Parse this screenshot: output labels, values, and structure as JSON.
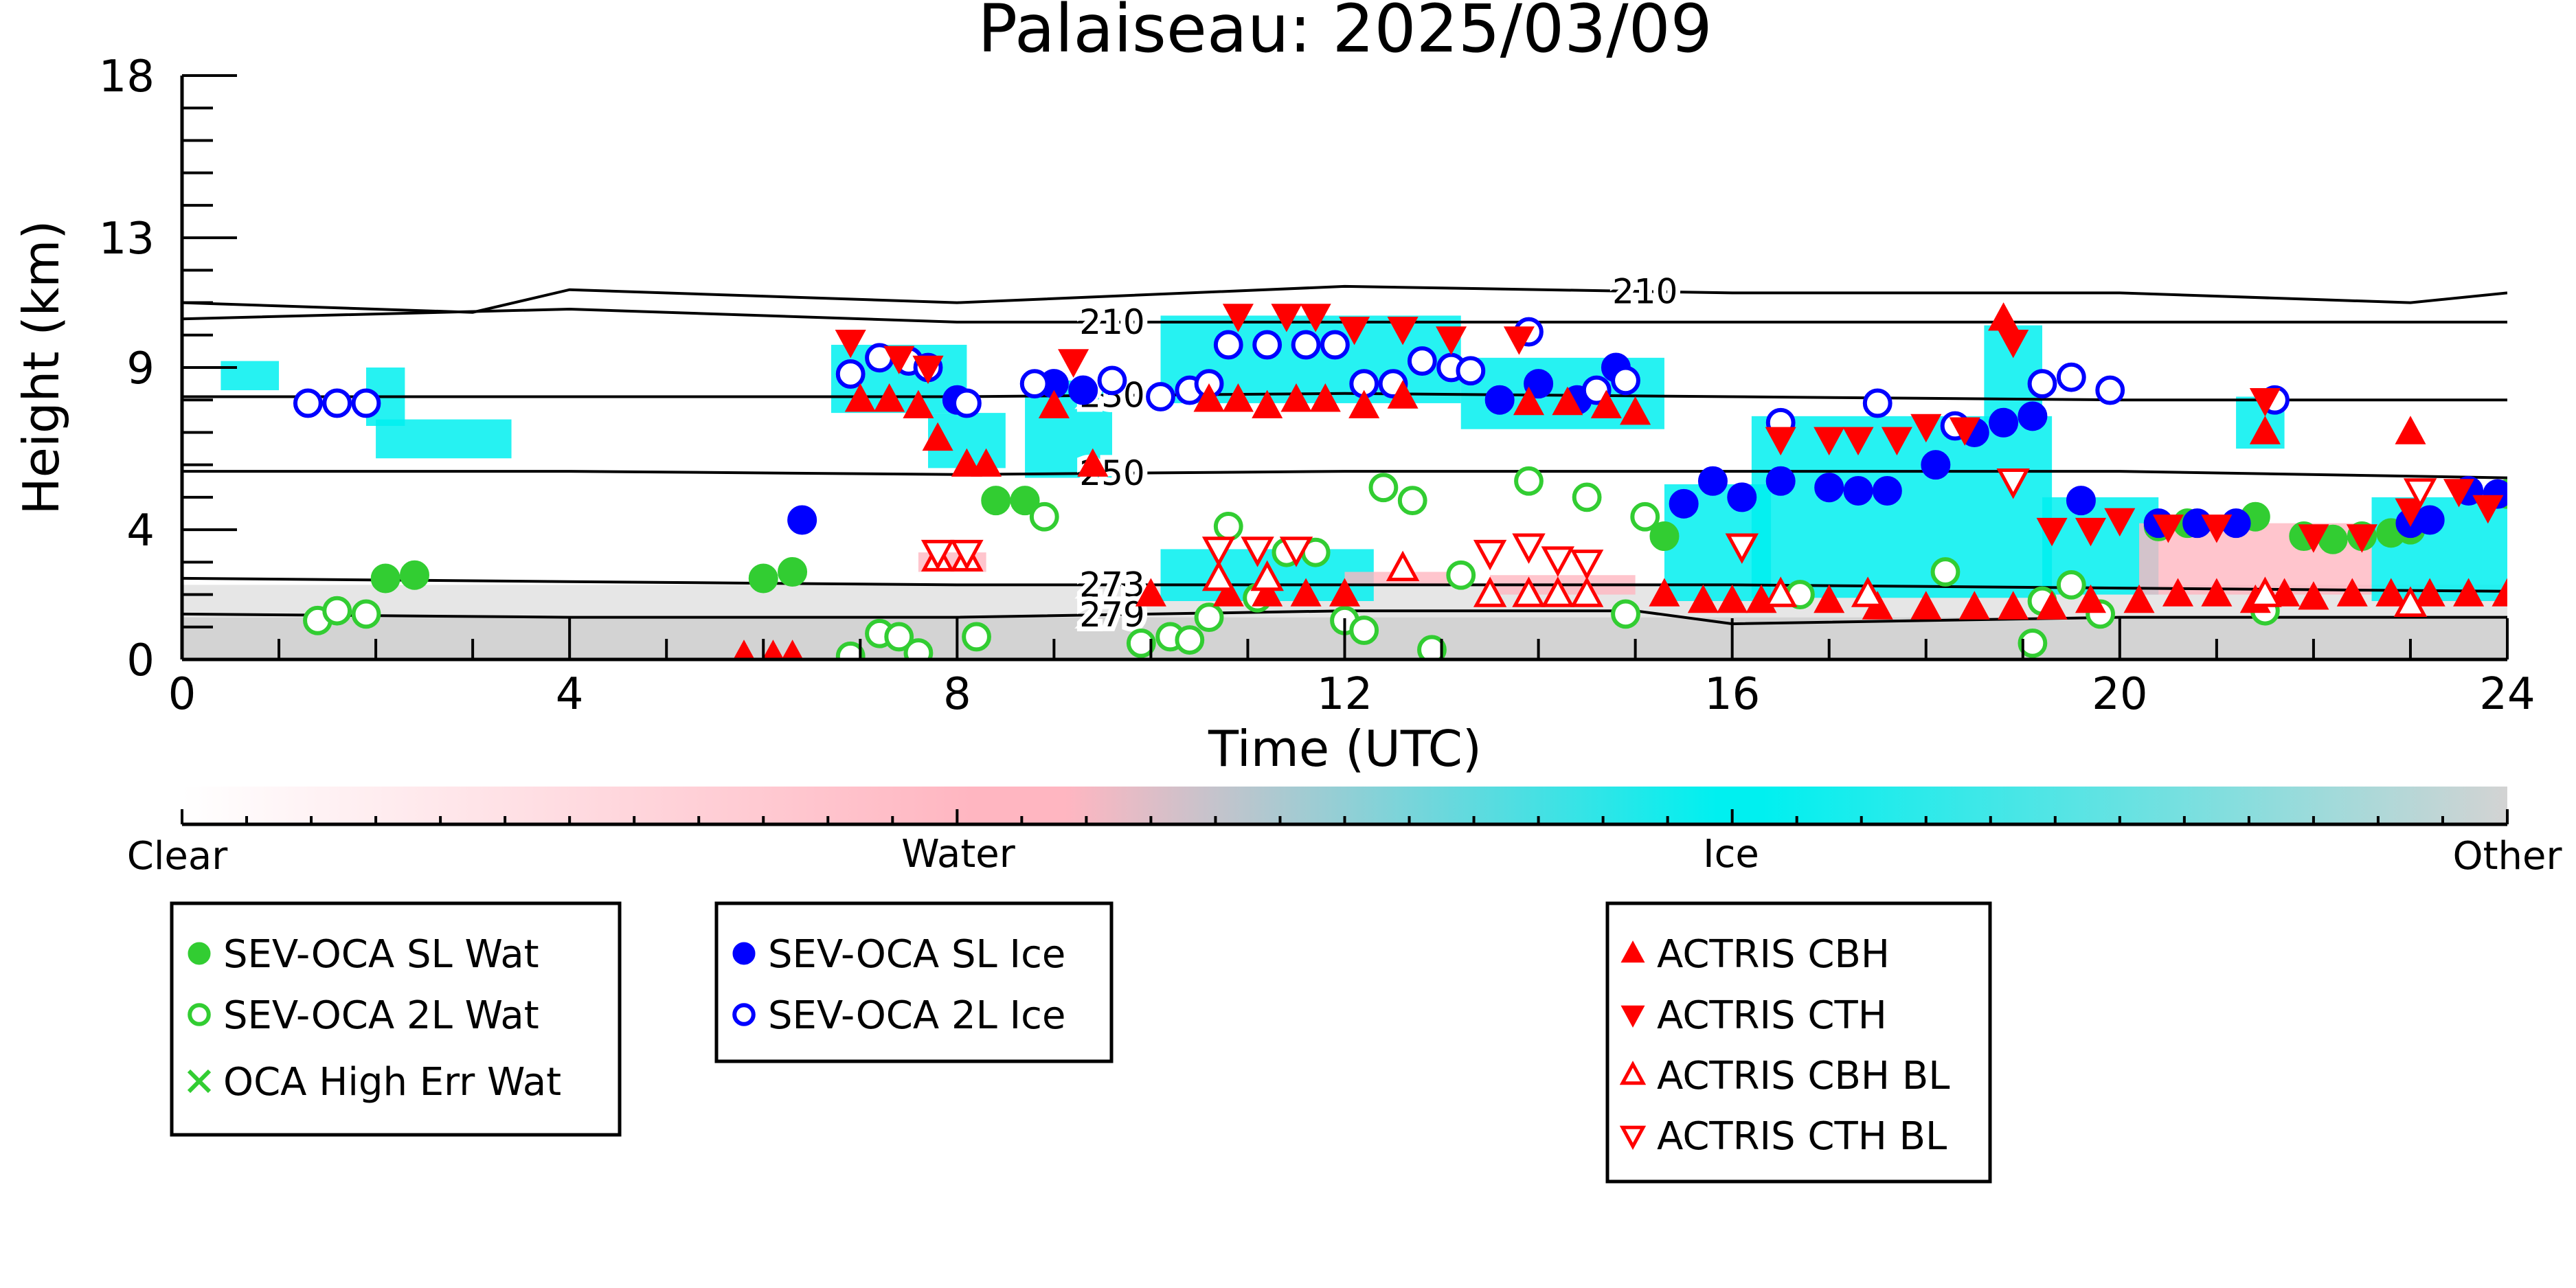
{
  "chart_data": {
    "type": "scatter",
    "title": "Palaiseau: 2025/03/09",
    "xlabel": "Time (UTC)",
    "ylabel": "Height (km)",
    "xlim": [
      0,
      24
    ],
    "ylim": [
      0,
      18
    ],
    "xticks": [
      0,
      4,
      8,
      12,
      16,
      20,
      24
    ],
    "yticks": [
      0,
      4,
      9,
      13,
      18
    ],
    "grid": false,
    "colorbar": {
      "labels": [
        "Clear",
        "Water",
        "Ice",
        "Other"
      ],
      "colors": [
        "#ffffff",
        "#ffb6c1",
        "#00f0f0",
        "#d3d3d3"
      ]
    },
    "temperature_contours": [
      {
        "label": "210",
        "points": [
          [
            0,
            11.0
          ],
          [
            3,
            10.7
          ],
          [
            4,
            11.4
          ],
          [
            8,
            11.0
          ],
          [
            12,
            11.5
          ],
          [
            16,
            11.3
          ],
          [
            20,
            11.3
          ],
          [
            23,
            11.0
          ],
          [
            24,
            11.3
          ]
        ]
      },
      {
        "label": "210",
        "points": [
          [
            0,
            10.5
          ],
          [
            4,
            10.8
          ],
          [
            8,
            10.4
          ],
          [
            12,
            10.4
          ],
          [
            16,
            10.4
          ],
          [
            20,
            10.4
          ],
          [
            24,
            10.4
          ]
        ]
      },
      {
        "label": "230",
        "points": [
          [
            0,
            8.1
          ],
          [
            4,
            8.1
          ],
          [
            8,
            8.1
          ],
          [
            12,
            8.2
          ],
          [
            16,
            8.1
          ],
          [
            20,
            8.0
          ],
          [
            24,
            8.0
          ]
        ]
      },
      {
        "label": "250",
        "points": [
          [
            0,
            5.8
          ],
          [
            4,
            5.8
          ],
          [
            8,
            5.7
          ],
          [
            12,
            5.8
          ],
          [
            16,
            5.8
          ],
          [
            20,
            5.8
          ],
          [
            24,
            5.6
          ]
        ]
      },
      {
        "label": "273",
        "points": [
          [
            0,
            2.5
          ],
          [
            4,
            2.4
          ],
          [
            8,
            2.3
          ],
          [
            12,
            2.3
          ],
          [
            16,
            2.3
          ],
          [
            20,
            2.2
          ],
          [
            24,
            2.1
          ]
        ]
      },
      {
        "label": "279",
        "points": [
          [
            0,
            1.4
          ],
          [
            4,
            1.3
          ],
          [
            8,
            1.3
          ],
          [
            12,
            1.5
          ],
          [
            15,
            1.5
          ],
          [
            16,
            1.1
          ],
          [
            20,
            1.3
          ],
          [
            24,
            1.3
          ]
        ]
      }
    ],
    "series": [
      {
        "name": "SEV-OCA SL Wat",
        "color": "#32cd32",
        "marker": "filled-circle",
        "points": [
          [
            2.1,
            2.5
          ],
          [
            2.4,
            2.6
          ],
          [
            6.0,
            2.5
          ],
          [
            6.3,
            2.7
          ],
          [
            8.4,
            4.9
          ],
          [
            8.7,
            4.9
          ],
          [
            15.3,
            3.8
          ],
          [
            20.4,
            4.1
          ],
          [
            20.7,
            4.2
          ],
          [
            21.4,
            4.4
          ],
          [
            21.9,
            3.8
          ],
          [
            22.2,
            3.7
          ],
          [
            22.5,
            3.8
          ],
          [
            22.8,
            3.9
          ],
          [
            23.0,
            4.0
          ],
          [
            24.0,
            5.1
          ]
        ]
      },
      {
        "name": "SEV-OCA 2L Wat",
        "color": "#32cd32",
        "marker": "open-circle",
        "points": [
          [
            1.4,
            1.2
          ],
          [
            1.6,
            1.5
          ],
          [
            1.9,
            1.4
          ],
          [
            6.9,
            0.1
          ],
          [
            7.2,
            0.8
          ],
          [
            7.4,
            0.7
          ],
          [
            7.6,
            0.2
          ],
          [
            8.2,
            0.7
          ],
          [
            8.9,
            4.4
          ],
          [
            9.9,
            0.5
          ],
          [
            10.2,
            0.7
          ],
          [
            10.4,
            0.6
          ],
          [
            10.6,
            1.3
          ],
          [
            10.8,
            4.1
          ],
          [
            11.1,
            1.9
          ],
          [
            11.4,
            3.3
          ],
          [
            11.7,
            3.3
          ],
          [
            12.0,
            1.2
          ],
          [
            12.2,
            0.9
          ],
          [
            12.4,
            5.3
          ],
          [
            12.7,
            4.9
          ],
          [
            12.9,
            0.3
          ],
          [
            13.2,
            2.6
          ],
          [
            13.9,
            5.5
          ],
          [
            14.5,
            5.0
          ],
          [
            14.9,
            1.4
          ],
          [
            15.1,
            4.4
          ],
          [
            16.7,
            2.0
          ],
          [
            18.2,
            2.7
          ],
          [
            19.1,
            0.5
          ],
          [
            19.2,
            1.8
          ],
          [
            19.5,
            2.3
          ],
          [
            19.8,
            1.4
          ],
          [
            21.5,
            1.5
          ]
        ]
      },
      {
        "name": "OCA High Err Wat",
        "color": "#32cd32",
        "marker": "x",
        "points": []
      },
      {
        "name": "SEV-OCA SL Ice",
        "color": "#0000ff",
        "marker": "filled-circle",
        "points": [
          [
            6.4,
            4.3
          ],
          [
            8.0,
            8.0
          ],
          [
            9.0,
            8.5
          ],
          [
            9.3,
            8.3
          ],
          [
            13.6,
            8.0
          ],
          [
            14.0,
            8.5
          ],
          [
            14.4,
            8.0
          ],
          [
            14.8,
            9.0
          ],
          [
            15.5,
            4.8
          ],
          [
            15.8,
            5.5
          ],
          [
            16.1,
            5.0
          ],
          [
            16.5,
            5.5
          ],
          [
            17.0,
            5.3
          ],
          [
            17.3,
            5.2
          ],
          [
            17.6,
            5.2
          ],
          [
            18.1,
            6.0
          ],
          [
            18.5,
            7.0
          ],
          [
            18.8,
            7.3
          ],
          [
            19.1,
            7.5
          ],
          [
            19.6,
            4.9
          ],
          [
            20.4,
            4.2
          ],
          [
            20.8,
            4.2
          ],
          [
            21.2,
            4.2
          ],
          [
            23.0,
            4.2
          ],
          [
            23.2,
            4.3
          ],
          [
            23.6,
            5.2
          ],
          [
            23.9,
            5.1
          ]
        ]
      },
      {
        "name": "SEV-OCA 2L Ice",
        "color": "#0000ff",
        "marker": "open-circle",
        "points": [
          [
            1.3,
            7.9
          ],
          [
            1.6,
            7.9
          ],
          [
            1.9,
            7.9
          ],
          [
            6.9,
            8.8
          ],
          [
            7.2,
            9.3
          ],
          [
            7.5,
            9.2
          ],
          [
            7.7,
            9.0
          ],
          [
            8.1,
            7.9
          ],
          [
            8.8,
            8.5
          ],
          [
            9.6,
            8.6
          ],
          [
            10.1,
            8.1
          ],
          [
            10.4,
            8.3
          ],
          [
            10.6,
            8.5
          ],
          [
            10.8,
            9.7
          ],
          [
            11.2,
            9.7
          ],
          [
            11.6,
            9.7
          ],
          [
            11.9,
            9.7
          ],
          [
            12.2,
            8.5
          ],
          [
            12.5,
            8.5
          ],
          [
            12.8,
            9.2
          ],
          [
            13.1,
            9.0
          ],
          [
            13.3,
            8.9
          ],
          [
            13.9,
            10.1
          ],
          [
            14.6,
            8.3
          ],
          [
            14.9,
            8.6
          ],
          [
            16.5,
            7.3
          ],
          [
            17.5,
            7.9
          ],
          [
            18.3,
            7.2
          ],
          [
            19.2,
            8.5
          ],
          [
            19.5,
            8.7
          ],
          [
            19.9,
            8.3
          ],
          [
            21.6,
            8.0
          ]
        ]
      },
      {
        "name": "ACTRIS CBH",
        "color": "#ff0000",
        "marker": "filled-triangle-up",
        "points": [
          [
            5.8,
            0.1
          ],
          [
            6.1,
            0.1
          ],
          [
            6.3,
            0.1
          ],
          [
            7.0,
            8.0
          ],
          [
            7.3,
            8.0
          ],
          [
            7.6,
            7.8
          ],
          [
            7.8,
            6.8
          ],
          [
            8.1,
            6.0
          ],
          [
            8.3,
            6.0
          ],
          [
            9.0,
            7.8
          ],
          [
            9.4,
            6.0
          ],
          [
            10.6,
            8.0
          ],
          [
            10.9,
            8.0
          ],
          [
            11.2,
            7.8
          ],
          [
            11.5,
            8.0
          ],
          [
            11.8,
            8.0
          ],
          [
            12.2,
            7.8
          ],
          [
            12.6,
            8.1
          ],
          [
            13.9,
            7.9
          ],
          [
            14.3,
            7.9
          ],
          [
            14.7,
            7.8
          ],
          [
            15.0,
            7.6
          ],
          [
            10.0,
            2.0
          ],
          [
            10.8,
            2.0
          ],
          [
            11.2,
            2.0
          ],
          [
            11.6,
            2.0
          ],
          [
            12.0,
            2.0
          ],
          [
            14.2,
            2.0
          ],
          [
            15.3,
            2.0
          ],
          [
            15.7,
            1.8
          ],
          [
            16.0,
            1.8
          ],
          [
            16.3,
            1.8
          ],
          [
            17.0,
            1.8
          ],
          [
            17.5,
            1.6
          ],
          [
            18.0,
            1.6
          ],
          [
            18.5,
            1.6
          ],
          [
            18.9,
            1.6
          ],
          [
            19.3,
            1.6
          ],
          [
            19.7,
            1.8
          ],
          [
            20.2,
            1.8
          ],
          [
            20.6,
            2.0
          ],
          [
            21.0,
            2.0
          ],
          [
            21.4,
            1.8
          ],
          [
            21.7,
            2.0
          ],
          [
            22.0,
            1.9
          ],
          [
            22.4,
            2.0
          ],
          [
            22.8,
            2.0
          ],
          [
            23.2,
            2.0
          ],
          [
            23.6,
            2.0
          ],
          [
            24.0,
            2.0
          ],
          [
            18.8,
            10.5
          ],
          [
            21.5,
            7.0
          ],
          [
            23.0,
            7.0
          ]
        ]
      },
      {
        "name": "ACTRIS CTH",
        "color": "#ff0000",
        "marker": "filled-triangle-down",
        "points": [
          [
            6.9,
            9.8
          ],
          [
            7.4,
            9.3
          ],
          [
            7.7,
            9.0
          ],
          [
            9.2,
            9.2
          ],
          [
            10.9,
            10.6
          ],
          [
            11.4,
            10.6
          ],
          [
            11.7,
            10.6
          ],
          [
            12.1,
            10.2
          ],
          [
            12.6,
            10.2
          ],
          [
            13.1,
            9.9
          ],
          [
            13.8,
            9.9
          ],
          [
            16.5,
            6.8
          ],
          [
            17.0,
            6.8
          ],
          [
            17.3,
            6.8
          ],
          [
            17.7,
            6.8
          ],
          [
            18.0,
            7.2
          ],
          [
            18.4,
            7.1
          ],
          [
            18.9,
            9.8
          ],
          [
            19.3,
            4.0
          ],
          [
            19.7,
            4.0
          ],
          [
            20.0,
            4.3
          ],
          [
            20.5,
            4.1
          ],
          [
            21.0,
            4.1
          ],
          [
            21.5,
            8.0
          ],
          [
            22.0,
            3.8
          ],
          [
            22.5,
            3.8
          ],
          [
            23.0,
            4.6
          ],
          [
            23.5,
            5.2
          ],
          [
            23.8,
            4.7
          ]
        ]
      },
      {
        "name": "ACTRIS CBH BL",
        "color": "#ff0000",
        "marker": "open-triangle-up",
        "points": [
          [
            7.8,
            3.1
          ],
          [
            8.1,
            3.1
          ],
          [
            10.7,
            2.5
          ],
          [
            11.2,
            2.5
          ],
          [
            13.5,
            2.0
          ],
          [
            13.9,
            2.0
          ],
          [
            14.2,
            2.0
          ],
          [
            14.5,
            2.0
          ],
          [
            12.6,
            2.8
          ],
          [
            16.5,
            2.0
          ],
          [
            17.4,
            2.0
          ],
          [
            21.5,
            2.0
          ],
          [
            23.0,
            1.7
          ]
        ]
      },
      {
        "name": "ACTRIS CTH BL",
        "color": "#ff0000",
        "marker": "open-triangle-down",
        "points": [
          [
            7.8,
            3.3
          ],
          [
            8.1,
            3.3
          ],
          [
            10.7,
            3.4
          ],
          [
            11.1,
            3.4
          ],
          [
            11.5,
            3.4
          ],
          [
            13.5,
            3.3
          ],
          [
            13.9,
            3.5
          ],
          [
            14.2,
            3.1
          ],
          [
            14.5,
            3.0
          ],
          [
            16.1,
            3.5
          ],
          [
            18.9,
            5.5
          ],
          [
            23.1,
            5.2
          ]
        ]
      }
    ]
  }
}
